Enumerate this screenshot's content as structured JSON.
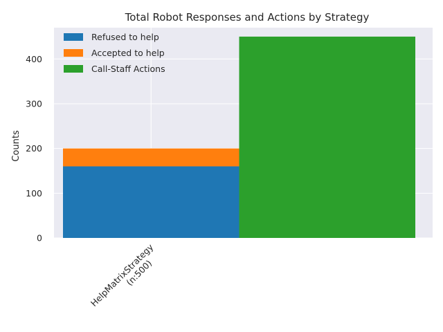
{
  "chart_data": {
    "type": "bar",
    "title": "Total Robot Responses and Actions by Strategy",
    "ylabel": "Counts",
    "xlabel": "",
    "ylim": [
      0,
      470
    ],
    "yticks": [
      0,
      100,
      200,
      300,
      400
    ],
    "categories": [
      "HelpMatrixStrategy\n(n:500)"
    ],
    "series": [
      {
        "name": "Refused to help",
        "color": "#1f77b4",
        "values": [
          160
        ],
        "group": "responses"
      },
      {
        "name": "Accepted to help",
        "color": "#ff7f0e",
        "values": [
          40
        ],
        "group": "responses",
        "stacked_on": "Refused to help"
      },
      {
        "name": "Call-Staff Actions",
        "color": "#2ca02c",
        "values": [
          450
        ],
        "group": "actions"
      }
    ],
    "legend_position": "top-left",
    "grid": true,
    "style": {
      "background": "#eaeaf2",
      "grid_color": "#ffffff"
    }
  }
}
